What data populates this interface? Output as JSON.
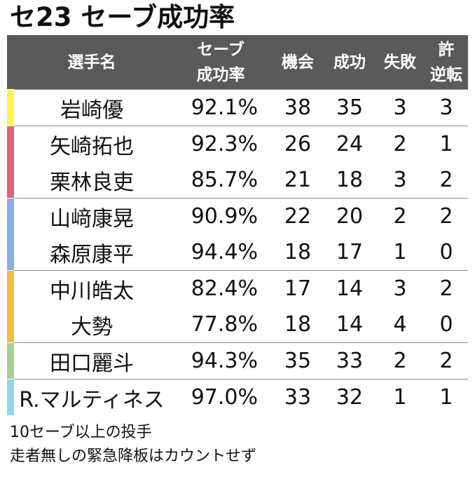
{
  "title": "セ23 セーブ成功率",
  "headers": {
    "name": "選手名",
    "rate_line1": "セーブ",
    "rate_line2": "成功率",
    "opportunities": "機会",
    "saves": "成功",
    "failures": "失敗",
    "allowed_line1": "許",
    "allowed_line2": "逆転"
  },
  "team_colors": {
    "yellow": "#fff44f",
    "pink": "#e5607a",
    "blue": "#86aee6",
    "orange": "#f7bb43",
    "green": "#a8cf92",
    "lightblue": "#8fd6f2"
  },
  "rows": [
    {
      "name": "岩崎優",
      "rate": "92.1%",
      "opportunities": "38",
      "saves": "35",
      "failures": "3",
      "allowed_reversal": "3",
      "color": "#fff44f"
    },
    {
      "name": "矢崎拓也",
      "rate": "92.3%",
      "opportunities": "26",
      "saves": "24",
      "failures": "2",
      "allowed_reversal": "1",
      "color": "#e5607a"
    },
    {
      "name": "栗林良吏",
      "rate": "85.7%",
      "opportunities": "21",
      "saves": "18",
      "failures": "3",
      "allowed_reversal": "2",
      "color": "#e5607a"
    },
    {
      "name": "山﨑康晃",
      "rate": "90.9%",
      "opportunities": "22",
      "saves": "20",
      "failures": "2",
      "allowed_reversal": "2",
      "color": "#86aee6"
    },
    {
      "name": "森原康平",
      "rate": "94.4%",
      "opportunities": "18",
      "saves": "17",
      "failures": "1",
      "allowed_reversal": "0",
      "color": "#86aee6"
    },
    {
      "name": "中川皓太",
      "rate": "82.4%",
      "opportunities": "17",
      "saves": "14",
      "failures": "3",
      "allowed_reversal": "2",
      "color": "#f7bb43"
    },
    {
      "name": "大勢",
      "rate": "77.8%",
      "opportunities": "18",
      "saves": "14",
      "failures": "4",
      "allowed_reversal": "0",
      "color": "#f7bb43"
    },
    {
      "name": "田口麗斗",
      "rate": "94.3%",
      "opportunities": "35",
      "saves": "33",
      "failures": "2",
      "allowed_reversal": "2",
      "color": "#a8cf92"
    },
    {
      "name": "R.マルティネス",
      "rate": "97.0%",
      "opportunities": "33",
      "saves": "32",
      "failures": "1",
      "allowed_reversal": "1",
      "color": "#8fd6f2"
    }
  ],
  "footnotes": {
    "line1": "10セーブ以上の投手",
    "line2": "走者無しの緊急降板はカウントせず"
  }
}
